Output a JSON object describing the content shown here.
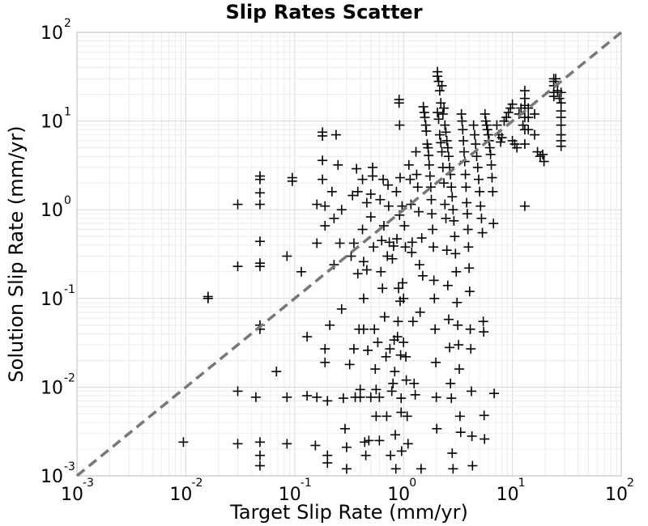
{
  "chart_data": {
    "type": "scatter",
    "title": "Slip Rates Scatter",
    "xlabel": "Target Slip Rate (mm/yr)",
    "ylabel": "Solution Slip Rate (mm/yr)",
    "x_scale": "log",
    "y_scale": "log",
    "xlim": [
      0.001,
      100
    ],
    "ylim": [
      0.001,
      100
    ],
    "x_ticks": [
      {
        "base": "10",
        "exp": "-3"
      },
      {
        "base": "10",
        "exp": "-2"
      },
      {
        "base": "10",
        "exp": "-1"
      },
      {
        "base": "10",
        "exp": "0"
      },
      {
        "base": "10",
        "exp": "1"
      },
      {
        "base": "10",
        "exp": "2"
      }
    ],
    "y_ticks": [
      {
        "base": "10",
        "exp": "-3"
      },
      {
        "base": "10",
        "exp": "-2"
      },
      {
        "base": "10",
        "exp": "-1"
      },
      {
        "base": "10",
        "exp": "0"
      },
      {
        "base": "10",
        "exp": "1"
      },
      {
        "base": "10",
        "exp": "2"
      }
    ],
    "grid": true,
    "reference_line": {
      "style": "dashed",
      "color": "#777777",
      "from": [
        0.001,
        0.001
      ],
      "to": [
        100,
        100
      ]
    },
    "marker": "plus",
    "marker_color": "#000000",
    "points": [
      [
        0.0095,
        0.0024
      ],
      [
        0.016,
        0.105
      ],
      [
        0.016,
        0.1
      ],
      [
        0.03,
        1.15
      ],
      [
        0.03,
        0.23
      ],
      [
        0.03,
        0.009
      ],
      [
        0.03,
        0.0023
      ],
      [
        0.044,
        0.0077
      ],
      [
        0.048,
        2.4
      ],
      [
        0.048,
        2.2
      ],
      [
        0.048,
        1.55
      ],
      [
        0.048,
        1.15
      ],
      [
        0.048,
        0.44
      ],
      [
        0.048,
        0.25
      ],
      [
        0.048,
        0.23
      ],
      [
        0.048,
        0.05
      ],
      [
        0.048,
        0.045
      ],
      [
        0.048,
        0.0024
      ],
      [
        0.048,
        0.0017
      ],
      [
        0.048,
        0.0013
      ],
      [
        0.068,
        0.015
      ],
      [
        0.085,
        0.0077
      ],
      [
        0.085,
        0.0023
      ],
      [
        0.085,
        0.3
      ],
      [
        0.095,
        2.3
      ],
      [
        0.095,
        2.1
      ],
      [
        0.115,
        0.2
      ],
      [
        0.13,
        0.037
      ],
      [
        0.13,
        0.008
      ],
      [
        0.155,
        0.0022
      ],
      [
        0.16,
        0.0077
      ],
      [
        0.16,
        1.15
      ],
      [
        0.16,
        0.42
      ],
      [
        0.18,
        7.5
      ],
      [
        0.18,
        6.8
      ],
      [
        0.18,
        3.6
      ],
      [
        0.18,
        2.2
      ],
      [
        0.19,
        1.1
      ],
      [
        0.19,
        0.66
      ],
      [
        0.19,
        0.027
      ],
      [
        0.19,
        0.019
      ],
      [
        0.2,
        0.007
      ],
      [
        0.2,
        0.0017
      ],
      [
        0.2,
        0.0014
      ],
      [
        0.21,
        0.05
      ],
      [
        0.22,
        1.6
      ],
      [
        0.23,
        0.8
      ],
      [
        0.23,
        0.24
      ],
      [
        0.24,
        7.0
      ],
      [
        0.25,
        3.2
      ],
      [
        0.26,
        0.42
      ],
      [
        0.27,
        1.0
      ],
      [
        0.27,
        0.076
      ],
      [
        0.28,
        0.0075
      ],
      [
        0.29,
        0.0034
      ],
      [
        0.3,
        0.0021
      ],
      [
        0.3,
        0.0012
      ],
      [
        0.32,
        0.018
      ],
      [
        0.33,
        0.3
      ],
      [
        0.34,
        1.45
      ],
      [
        0.35,
        0.42
      ],
      [
        0.35,
        0.027
      ],
      [
        0.36,
        0.0077
      ],
      [
        0.37,
        2.9
      ],
      [
        0.38,
        1.6
      ],
      [
        0.38,
        0.19
      ],
      [
        0.39,
        0.045
      ],
      [
        0.4,
        0.0094
      ],
      [
        0.4,
        0.0077
      ],
      [
        0.42,
        2.2
      ],
      [
        0.42,
        0.6
      ],
      [
        0.43,
        0.26
      ],
      [
        0.43,
        0.1
      ],
      [
        0.43,
        0.045
      ],
      [
        0.44,
        0.0024
      ],
      [
        0.45,
        0.0017
      ],
      [
        0.46,
        1.2
      ],
      [
        0.46,
        0.21
      ],
      [
        0.47,
        0.026
      ],
      [
        0.48,
        0.0025
      ],
      [
        0.5,
        0.0077
      ],
      [
        0.5,
        1.5
      ],
      [
        0.5,
        0.83
      ],
      [
        0.52,
        3.0
      ],
      [
        0.52,
        2.4
      ],
      [
        0.53,
        0.38
      ],
      [
        0.54,
        0.045
      ],
      [
        0.55,
        0.016
      ],
      [
        0.56,
        0.0094
      ],
      [
        0.56,
        0.0047
      ],
      [
        0.58,
        0.032
      ],
      [
        0.6,
        0.0077
      ],
      [
        0.6,
        0.0025
      ],
      [
        0.61,
        1.3
      ],
      [
        0.62,
        0.2
      ],
      [
        0.63,
        0.45
      ],
      [
        0.64,
        0.13
      ],
      [
        0.65,
        2.2
      ],
      [
        0.66,
        0.66
      ],
      [
        0.67,
        0.062
      ],
      [
        0.69,
        0.022
      ],
      [
        0.7,
        0.0047
      ],
      [
        0.71,
        0.3
      ],
      [
        0.72,
        1.9
      ],
      [
        0.73,
        1.1
      ],
      [
        0.74,
        0.43
      ],
      [
        0.75,
        0.027
      ],
      [
        0.76,
        0.0017
      ],
      [
        0.78,
        0.009
      ],
      [
        0.79,
        0.28
      ],
      [
        0.8,
        0.011
      ],
      [
        0.81,
        0.39
      ],
      [
        0.82,
        0.034
      ],
      [
        0.83,
        0.015
      ],
      [
        0.84,
        0.0029
      ],
      [
        0.85,
        0.0012
      ],
      [
        0.86,
        1.6
      ],
      [
        0.87,
        0.47
      ],
      [
        0.88,
        0.037
      ],
      [
        0.89,
        0.055
      ],
      [
        0.9,
        0.13
      ],
      [
        0.91,
        17.5
      ],
      [
        0.91,
        16.0
      ],
      [
        0.92,
        9.0
      ],
      [
        0.92,
        0.87
      ],
      [
        0.93,
        2.3
      ],
      [
        0.93,
        0.093
      ],
      [
        0.94,
        0.023
      ],
      [
        0.95,
        0.0075
      ],
      [
        0.95,
        0.0052
      ],
      [
        0.96,
        0.0019
      ],
      [
        0.97,
        1.1
      ],
      [
        0.98,
        0.15
      ],
      [
        1.0,
        0.1
      ],
      [
        1.0,
        0.032
      ],
      [
        1.02,
        0.66
      ],
      [
        1.04,
        0.38
      ],
      [
        1.05,
        0.022
      ],
      [
        1.06,
        0.012
      ],
      [
        1.08,
        0.0047
      ],
      [
        1.1,
        0.0023
      ],
      [
        1.12,
        3.2
      ],
      [
        1.15,
        2.2
      ],
      [
        1.17,
        1.15
      ],
      [
        1.19,
        0.33
      ],
      [
        1.2,
        0.43
      ],
      [
        1.22,
        0.055
      ],
      [
        1.25,
        0.011
      ],
      [
        1.28,
        0.0082
      ],
      [
        1.3,
        4.5
      ],
      [
        1.32,
        2.5
      ],
      [
        1.35,
        1.8
      ],
      [
        1.38,
        0.95
      ],
      [
        1.4,
        0.24
      ],
      [
        1.42,
        0.07
      ],
      [
        1.45,
        0.0012
      ],
      [
        1.47,
        0.48
      ],
      [
        1.5,
        0.18
      ],
      [
        1.52,
        14.5
      ],
      [
        1.55,
        12.5
      ],
      [
        1.57,
        11.0
      ],
      [
        1.6,
        9.0
      ],
      [
        1.62,
        7.7
      ],
      [
        1.65,
        5.5
      ],
      [
        1.68,
        5.0
      ],
      [
        1.7,
        4.1
      ],
      [
        1.72,
        3.2
      ],
      [
        1.75,
        2.4
      ],
      [
        1.78,
        1.8
      ],
      [
        1.8,
        1.3
      ],
      [
        1.82,
        0.9
      ],
      [
        1.85,
        0.6
      ],
      [
        1.88,
        0.38
      ],
      [
        1.9,
        0.16
      ],
      [
        1.92,
        0.1
      ],
      [
        1.95,
        0.045
      ],
      [
        1.98,
        0.019
      ],
      [
        2.0,
        0.0077
      ],
      [
        2.02,
        0.0034
      ],
      [
        2.05,
        12.5
      ],
      [
        2.1,
        10.5
      ],
      [
        2.15,
        7.0
      ],
      [
        2.2,
        5.7
      ],
      [
        2.25,
        4.5
      ],
      [
        2.3,
        3.0
      ],
      [
        2.35,
        2.0
      ],
      [
        2.4,
        1.15
      ],
      [
        2.45,
        0.8
      ],
      [
        2.5,
        0.35
      ],
      [
        2.55,
        0.14
      ],
      [
        2.6,
        0.058
      ],
      [
        2.65,
        0.028
      ],
      [
        2.7,
        0.011
      ],
      [
        2.75,
        0.0075
      ],
      [
        2.8,
        0.0018
      ],
      [
        2.85,
        0.0012
      ],
      [
        2.05,
        36
      ],
      [
        2.05,
        32
      ],
      [
        2.1,
        28
      ],
      [
        2.15,
        22
      ],
      [
        2.2,
        16
      ],
      [
        2.25,
        25
      ],
      [
        2.3,
        12
      ],
      [
        2.35,
        14
      ],
      [
        2.4,
        9
      ],
      [
        2.45,
        7.5
      ],
      [
        2.5,
        6
      ],
      [
        2.55,
        5
      ],
      [
        2.6,
        4
      ],
      [
        2.65,
        3
      ],
      [
        2.7,
        2.5
      ],
      [
        2.75,
        1.8
      ],
      [
        2.8,
        1.4
      ],
      [
        2.85,
        1.0
      ],
      [
        2.9,
        0.75
      ],
      [
        2.95,
        0.5
      ],
      [
        3.0,
        0.32
      ],
      [
        3.05,
        0.2
      ],
      [
        3.1,
        0.09
      ],
      [
        3.15,
        0.05
      ],
      [
        3.2,
        0.03
      ],
      [
        3.25,
        0.016
      ],
      [
        3.3,
        0.0047
      ],
      [
        3.35,
        0.0031
      ],
      [
        3.4,
        12
      ],
      [
        3.45,
        10
      ],
      [
        3.5,
        8
      ],
      [
        3.55,
        6
      ],
      [
        3.6,
        4.5
      ],
      [
        3.65,
        3.5
      ],
      [
        3.7,
        2.5
      ],
      [
        3.75,
        1.8
      ],
      [
        3.8,
        1.2
      ],
      [
        3.85,
        0.9
      ],
      [
        3.9,
        0.6
      ],
      [
        3.95,
        0.38
      ],
      [
        4.0,
        0.22
      ],
      [
        4.05,
        0.12
      ],
      [
        4.1,
        0.045
      ],
      [
        4.15,
        0.027
      ],
      [
        4.2,
        0.009
      ],
      [
        4.25,
        0.0028
      ],
      [
        4.3,
        0.0013
      ],
      [
        4.4,
        9
      ],
      [
        4.5,
        7
      ],
      [
        4.6,
        5.5
      ],
      [
        4.7,
        4
      ],
      [
        4.8,
        3
      ],
      [
        4.9,
        2.2
      ],
      [
        5.0,
        1.6
      ],
      [
        5.1,
        1.1
      ],
      [
        5.2,
        0.8
      ],
      [
        5.3,
        0.55
      ],
      [
        5.4,
        0.055
      ],
      [
        5.45,
        0.042
      ],
      [
        5.5,
        0.0048
      ],
      [
        5.55,
        0.0026
      ],
      [
        5.6,
        12
      ],
      [
        5.7,
        10
      ],
      [
        5.8,
        9
      ],
      [
        5.9,
        8
      ],
      [
        6.0,
        7
      ],
      [
        6.1,
        6
      ],
      [
        6.2,
        5
      ],
      [
        6.3,
        4.2
      ],
      [
        6.4,
        3.2
      ],
      [
        6.5,
        2.3
      ],
      [
        6.6,
        1.6
      ],
      [
        6.7,
        0.7
      ],
      [
        6.8,
        0.0085
      ],
      [
        7.2,
        9
      ],
      [
        7.5,
        7
      ],
      [
        7.8,
        5.8
      ],
      [
        8.0,
        6.5
      ],
      [
        8.4,
        10
      ],
      [
        8.8,
        11
      ],
      [
        9.2,
        12.5
      ],
      [
        9.6,
        14
      ],
      [
        10,
        15.5
      ],
      [
        10,
        6
      ],
      [
        10.5,
        5.5
      ],
      [
        11,
        5
      ],
      [
        11.5,
        12
      ],
      [
        12,
        14
      ],
      [
        12.5,
        9
      ],
      [
        13,
        22
      ],
      [
        13,
        18
      ],
      [
        13,
        15
      ],
      [
        13,
        11
      ],
      [
        13,
        8
      ],
      [
        13,
        5.5
      ],
      [
        13,
        1.1
      ],
      [
        14,
        14
      ],
      [
        14,
        11
      ],
      [
        14,
        8
      ],
      [
        16,
        12
      ],
      [
        16,
        7
      ],
      [
        17,
        4.5
      ],
      [
        18,
        4
      ],
      [
        19,
        4.2
      ],
      [
        19.5,
        3.5
      ],
      [
        24,
        30
      ],
      [
        24,
        28
      ],
      [
        24,
        25
      ],
      [
        24,
        21
      ],
      [
        24,
        19
      ],
      [
        25,
        30
      ],
      [
        26,
        22
      ],
      [
        27,
        18
      ],
      [
        28,
        21
      ],
      [
        28,
        16
      ],
      [
        28,
        13
      ],
      [
        28,
        11
      ],
      [
        28,
        9
      ],
      [
        28,
        7
      ],
      [
        28,
        6
      ],
      [
        28,
        5.2
      ]
    ]
  }
}
